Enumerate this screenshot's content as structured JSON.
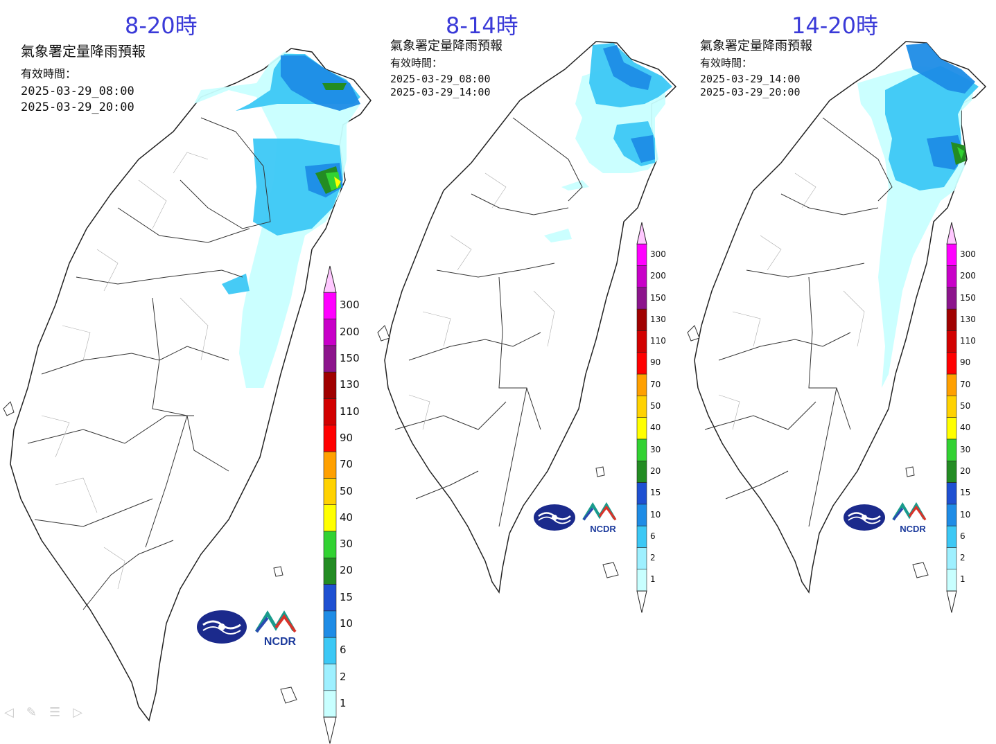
{
  "panels": [
    {
      "header": "8-20時",
      "product_title": "氣象署定量降雨預報",
      "valid_label": "有效時間：",
      "start_time": "2025-03-29_08:00",
      "end_time": "2025-03-29_20:00"
    },
    {
      "header": "8-14時",
      "product_title": "氣象署定量降雨預報",
      "valid_label": "有效時間：",
      "start_time": "2025-03-29_08:00",
      "end_time": "2025-03-29_14:00"
    },
    {
      "header": "14-20時",
      "product_title": "氣象署定量降雨預報",
      "valid_label": "有效時間：",
      "start_time": "2025-03-29_14:00",
      "end_time": "2025-03-29_20:00"
    }
  ],
  "legend": {
    "levels": [
      "1",
      "2",
      "6",
      "10",
      "15",
      "20",
      "30",
      "40",
      "50",
      "70",
      "90",
      "110",
      "130",
      "150",
      "200",
      "300"
    ],
    "colors": [
      "#c8ffff",
      "#9ef0ff",
      "#3cc8f5",
      "#1e8ce6",
      "#1e50d2",
      "#238c23",
      "#32d232",
      "#ffff00",
      "#ffd200",
      "#ffa000",
      "#ff0000",
      "#d20000",
      "#a00000",
      "#8c148c",
      "#c800c8",
      "#ff00ff"
    ],
    "top_color": "#ffc8ff"
  },
  "logos": {
    "cwa": "cwa-logo",
    "ncdr_text": "NCDR"
  },
  "nav_icons": [
    "arrow-left-icon",
    "pen-icon",
    "menu-icon",
    "arrow-right-icon"
  ]
}
